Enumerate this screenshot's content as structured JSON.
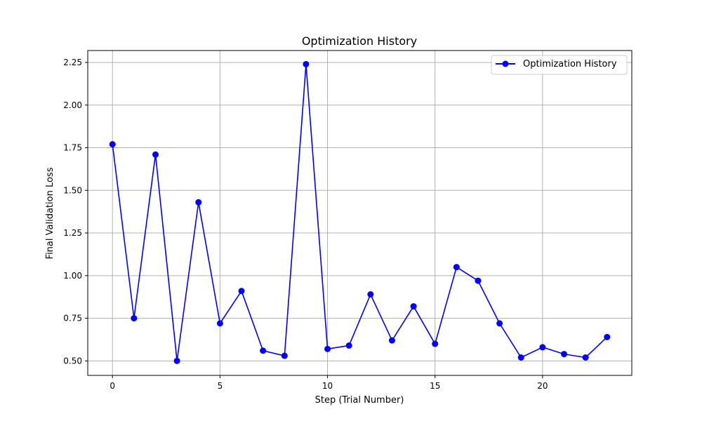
{
  "chart_data": {
    "type": "line",
    "title": "Optimization History",
    "xlabel": "Step (Trial Number)",
    "ylabel": "Final Validation Loss",
    "xlim": [
      -1.15,
      24.15
    ],
    "ylim": [
      0.415,
      2.32
    ],
    "xticks": [
      0,
      5,
      10,
      15,
      20
    ],
    "xtick_labels": [
      "0",
      "5",
      "10",
      "15",
      "20"
    ],
    "yticks": [
      0.5,
      0.75,
      1.0,
      1.25,
      1.5,
      1.75,
      2.0,
      2.25
    ],
    "ytick_labels": [
      "0.50",
      "0.75",
      "1.00",
      "1.25",
      "1.50",
      "1.75",
      "2.00",
      "2.25"
    ],
    "grid": true,
    "legend_position": "top-right",
    "series": [
      {
        "name": "Optimization History",
        "color": "#0000ff",
        "marker": "circle",
        "x": [
          0,
          1,
          2,
          3,
          4,
          5,
          6,
          7,
          8,
          9,
          10,
          11,
          12,
          13,
          14,
          15,
          16,
          17,
          18,
          19,
          20,
          21,
          22,
          23
        ],
        "y": [
          1.77,
          0.75,
          1.71,
          0.5,
          1.43,
          0.72,
          0.91,
          0.56,
          0.53,
          2.24,
          0.57,
          0.59,
          0.89,
          0.62,
          0.82,
          0.6,
          1.05,
          0.97,
          0.72,
          0.52,
          0.58,
          0.54,
          0.52,
          0.64
        ]
      }
    ]
  }
}
